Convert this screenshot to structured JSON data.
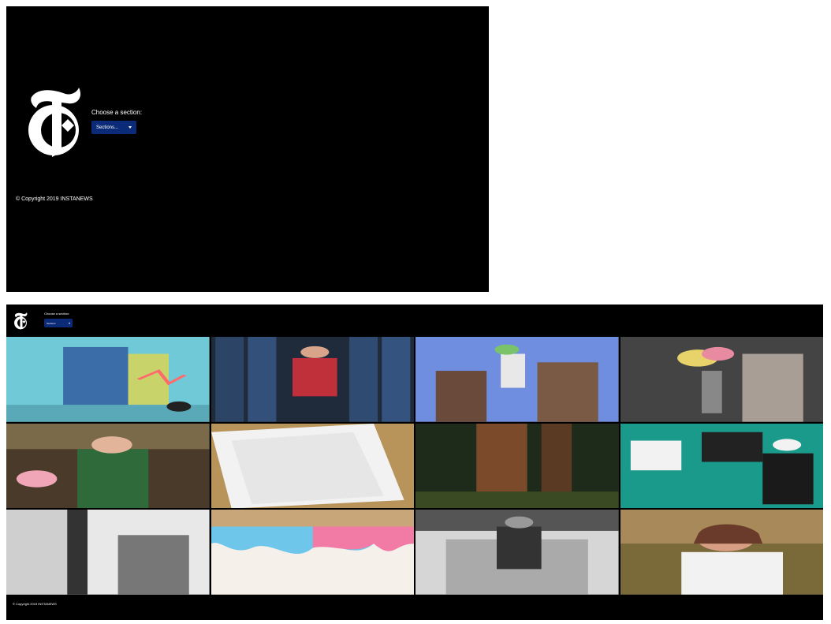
{
  "header": {
    "choose_label": "Choose a section:",
    "sections_dropdown": "Sections..."
  },
  "logo": {
    "icon": "nyt-t-logo"
  },
  "footer": {
    "copyright": "© Copyright 2019 INSTANEWS"
  },
  "large_view": {
    "choose_label": "Choose a section:",
    "sections_dropdown": "Sections",
    "copyright": "© Copyright 2019 INSTANEWS"
  },
  "colors": {
    "background": "#000000",
    "dropdown": "#0b2a78",
    "text": "#ffffff"
  },
  "articles": [
    {
      "image": "illustration-building"
    },
    {
      "image": "person-with-jeans"
    },
    {
      "image": "people-drinking"
    },
    {
      "image": "woman-with-flowers"
    },
    {
      "image": "woman-in-shop"
    },
    {
      "image": "white-envelopes"
    },
    {
      "image": "redwood-forest"
    },
    {
      "image": "teal-illustration"
    },
    {
      "image": "bw-woman-ties"
    },
    {
      "image": "drip-cake"
    },
    {
      "image": "bw-woman-sofa"
    },
    {
      "image": "smiling-woman"
    }
  ]
}
